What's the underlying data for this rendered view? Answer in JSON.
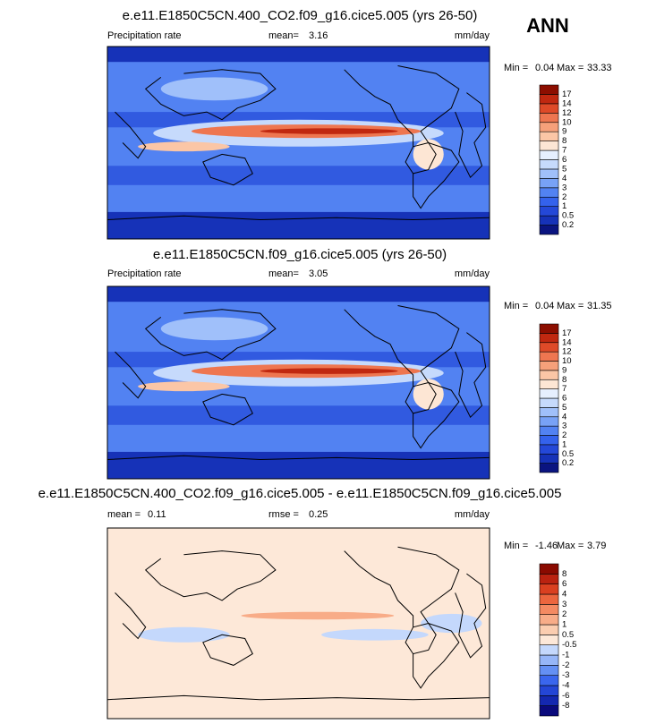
{
  "season": "ANN",
  "panels": [
    {
      "title": "e.e11.E1850C5CN.400_CO2.f09_g16.cice5.005 (yrs 26-50)",
      "variable": "Precipitation rate",
      "stat1_label": "mean=",
      "stat1": 3.16,
      "units": "mm/day",
      "min_label": "Min =",
      "min": 0.04,
      "max_label": "Max =",
      "max": 33.33,
      "colorbar": {
        "levels": [
          0.2,
          0.5,
          1,
          2,
          3,
          4,
          5,
          6,
          7,
          8,
          9,
          10,
          12,
          14,
          17
        ],
        "colors": [
          "#0a1480",
          "#1632b8",
          "#2448d8",
          "#3462ec",
          "#5282f2",
          "#78a2f6",
          "#a0c0fa",
          "#c6dafc",
          "#e6effe",
          "#fde6d4",
          "#fbc6a6",
          "#f6a07a",
          "#ee7650",
          "#de4a28",
          "#c02810",
          "#8c0e00"
        ]
      }
    },
    {
      "title": "e.e11.E1850C5CN.f09_g16.cice5.005 (yrs 26-50)",
      "variable": "Precipitation rate",
      "stat1_label": "mean=",
      "stat1": 3.05,
      "units": "mm/day",
      "min_label": "Min =",
      "min": 0.04,
      "max_label": "Max =",
      "max": 31.35,
      "colorbar": {
        "levels": [
          0.2,
          0.5,
          1,
          2,
          3,
          4,
          5,
          6,
          7,
          8,
          9,
          10,
          12,
          14,
          17
        ],
        "colors": [
          "#0a1480",
          "#1632b8",
          "#2448d8",
          "#3462ec",
          "#5282f2",
          "#78a2f6",
          "#a0c0fa",
          "#c6dafc",
          "#e6effe",
          "#fde6d4",
          "#fbc6a6",
          "#f6a07a",
          "#ee7650",
          "#de4a28",
          "#c02810",
          "#8c0e00"
        ]
      }
    },
    {
      "title": "e.e11.E1850C5CN.400_CO2.f09_g16.cice5.005 - e.e11.E1850C5CN.f09_g16.cice5.005",
      "stat1_label": "mean =",
      "stat1": 0.11,
      "stat2_label": "rmse =",
      "stat2": 0.25,
      "units": "mm/day",
      "min_label": "Min =",
      "min": -1.46,
      "max_label": "Max =",
      "max": 3.79,
      "colorbar": {
        "levels": [
          -8,
          -6,
          -4,
          -3,
          -2,
          -1,
          -0.5,
          0.5,
          1,
          2,
          3,
          4,
          6,
          8
        ],
        "colors": [
          "#0a0a7c",
          "#1428b0",
          "#2446d6",
          "#3a66ee",
          "#6490f4",
          "#96b6f8",
          "#c4d8fc",
          "#fde8d8",
          "#fbcdb0",
          "#f8ac88",
          "#f48a62",
          "#ec663e",
          "#da4020",
          "#ba2210",
          "#8a0a00"
        ]
      }
    }
  ]
}
